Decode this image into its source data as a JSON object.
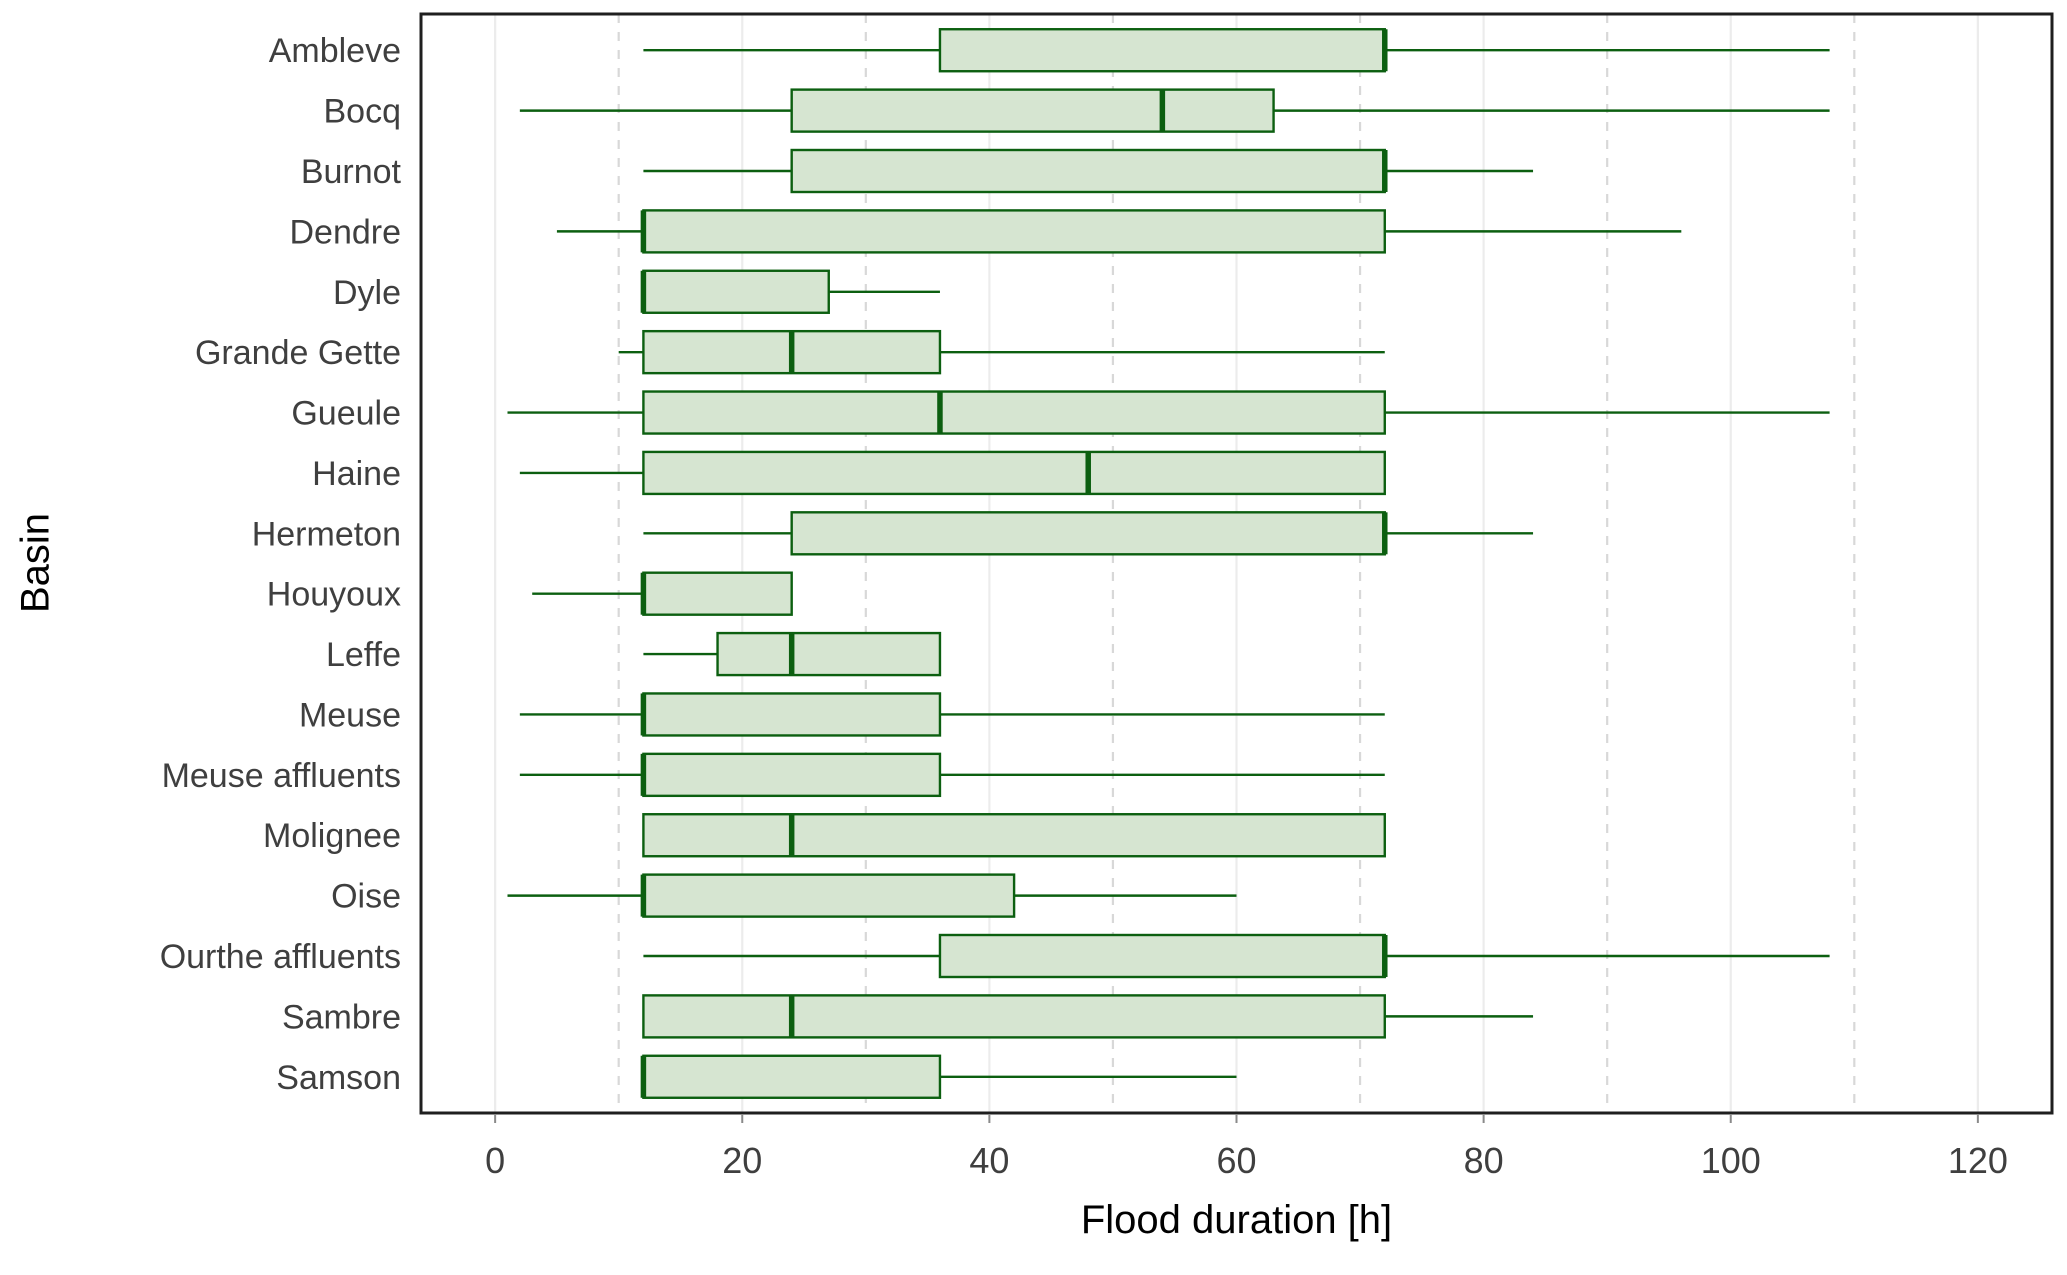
{
  "figure": {
    "background": "#ffffff"
  },
  "chart_data": {
    "type": "boxplot",
    "orientation": "horizontal",
    "title": "",
    "xlabel": "Flood duration [h]",
    "ylabel": "Basin",
    "xlim": [
      -6,
      126
    ],
    "x_major_ticks": [
      0,
      20,
      40,
      60,
      80,
      100,
      120
    ],
    "x_minor_gridlines": [
      10,
      30,
      50,
      70,
      90,
      110
    ],
    "grid": "vertical only: major solid, minor dashed",
    "legend": "none",
    "categories": [
      "Ambleve",
      "Bocq",
      "Burnot",
      "Dendre",
      "Dyle",
      "Grande Gette",
      "Gueule",
      "Haine",
      "Hermeton",
      "Houyoux",
      "Leffe",
      "Meuse",
      "Meuse affluents",
      "Molignee",
      "Oise",
      "Ourthe affluents",
      "Sambre",
      "Samson"
    ],
    "series": [
      {
        "name": "Ambleve",
        "whisker_low": 12,
        "q1": 36,
        "median": 72,
        "q3": 72,
        "whisker_high": 108
      },
      {
        "name": "Bocq",
        "whisker_low": 2,
        "q1": 24,
        "median": 54,
        "q3": 63,
        "whisker_high": 108
      },
      {
        "name": "Burnot",
        "whisker_low": 12,
        "q1": 24,
        "median": 72,
        "q3": 72,
        "whisker_high": 84
      },
      {
        "name": "Dendre",
        "whisker_low": 5,
        "q1": 12,
        "median": 12,
        "q3": 72,
        "whisker_high": 96
      },
      {
        "name": "Dyle",
        "whisker_low": 12,
        "q1": 12,
        "median": 12,
        "q3": 27,
        "whisker_high": 36
      },
      {
        "name": "Grande Gette",
        "whisker_low": 10,
        "q1": 12,
        "median": 24,
        "q3": 36,
        "whisker_high": 72
      },
      {
        "name": "Gueule",
        "whisker_low": 1,
        "q1": 12,
        "median": 36,
        "q3": 72,
        "whisker_high": 108
      },
      {
        "name": "Haine",
        "whisker_low": 2,
        "q1": 12,
        "median": 48,
        "q3": 72,
        "whisker_high": 72
      },
      {
        "name": "Hermeton",
        "whisker_low": 12,
        "q1": 24,
        "median": 72,
        "q3": 72,
        "whisker_high": 84
      },
      {
        "name": "Houyoux",
        "whisker_low": 3,
        "q1": 12,
        "median": 12,
        "q3": 24,
        "whisker_high": 24
      },
      {
        "name": "Leffe",
        "whisker_low": 12,
        "q1": 18,
        "median": 24,
        "q3": 36,
        "whisker_high": 36
      },
      {
        "name": "Meuse",
        "whisker_low": 2,
        "q1": 12,
        "median": 12,
        "q3": 36,
        "whisker_high": 72
      },
      {
        "name": "Meuse affluents",
        "whisker_low": 2,
        "q1": 12,
        "median": 12,
        "q3": 36,
        "whisker_high": 72
      },
      {
        "name": "Molignee",
        "whisker_low": 12,
        "q1": 12,
        "median": 24,
        "q3": 72,
        "whisker_high": 72
      },
      {
        "name": "Oise",
        "whisker_low": 1,
        "q1": 12,
        "median": 12,
        "q3": 42,
        "whisker_high": 60
      },
      {
        "name": "Ourthe affluents",
        "whisker_low": 12,
        "q1": 36,
        "median": 72,
        "q3": 72,
        "whisker_high": 108
      },
      {
        "name": "Sambre",
        "whisker_low": 12,
        "q1": 12,
        "median": 24,
        "q3": 72,
        "whisker_high": 84
      },
      {
        "name": "Samson",
        "whisker_low": 12,
        "q1": 12,
        "median": 12,
        "q3": 36,
        "whisker_high": 60
      }
    ],
    "colors": {
      "box_fill": "#d6e5d1",
      "box_stroke": "#0c5f10",
      "whisker": "#0c5f10",
      "panel_border": "#1f1f1f",
      "grid_major": "#ececec",
      "grid_minor": "#d8d8d8",
      "tick_mark": "#8a8a8a",
      "tick_label": "#3f3f3f",
      "axis_title": "#000000"
    }
  }
}
